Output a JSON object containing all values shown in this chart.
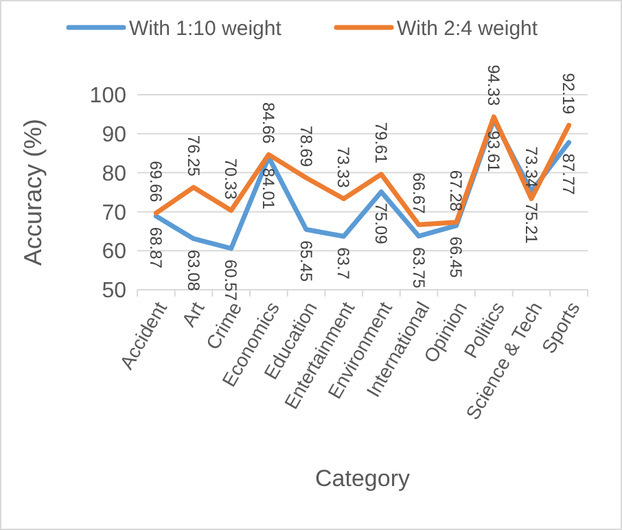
{
  "chart_data": {
    "type": "line",
    "xlabel": "Category",
    "ylabel": "Accuracy (%)",
    "categories": [
      "Accident",
      "Art",
      "Crime",
      "Economics",
      "Education",
      "Entertainment",
      "Environment",
      "International",
      "Opinion",
      "Politics",
      "Science & Tech",
      "Sports"
    ],
    "series": [
      {
        "name": "With 1:10 weight",
        "color": "#5b9bd5",
        "values": [
          68.87,
          63.08,
          60.57,
          84.01,
          65.45,
          63.7,
          75.09,
          63.75,
          66.45,
          93.61,
          75.21,
          87.77
        ]
      },
      {
        "name": "With 2:4 weight",
        "color": "#ed7d31",
        "values": [
          69.66,
          76.25,
          70.33,
          84.66,
          78.69,
          73.33,
          79.61,
          66.67,
          67.28,
          94.33,
          73.34,
          92.19
        ]
      }
    ],
    "ylim": [
      50,
      100
    ],
    "yticks": [
      50,
      60,
      70,
      80,
      90,
      100
    ],
    "grid": "y",
    "legend": "top",
    "data_labels": true,
    "marker": "none",
    "line_style": "solid"
  }
}
